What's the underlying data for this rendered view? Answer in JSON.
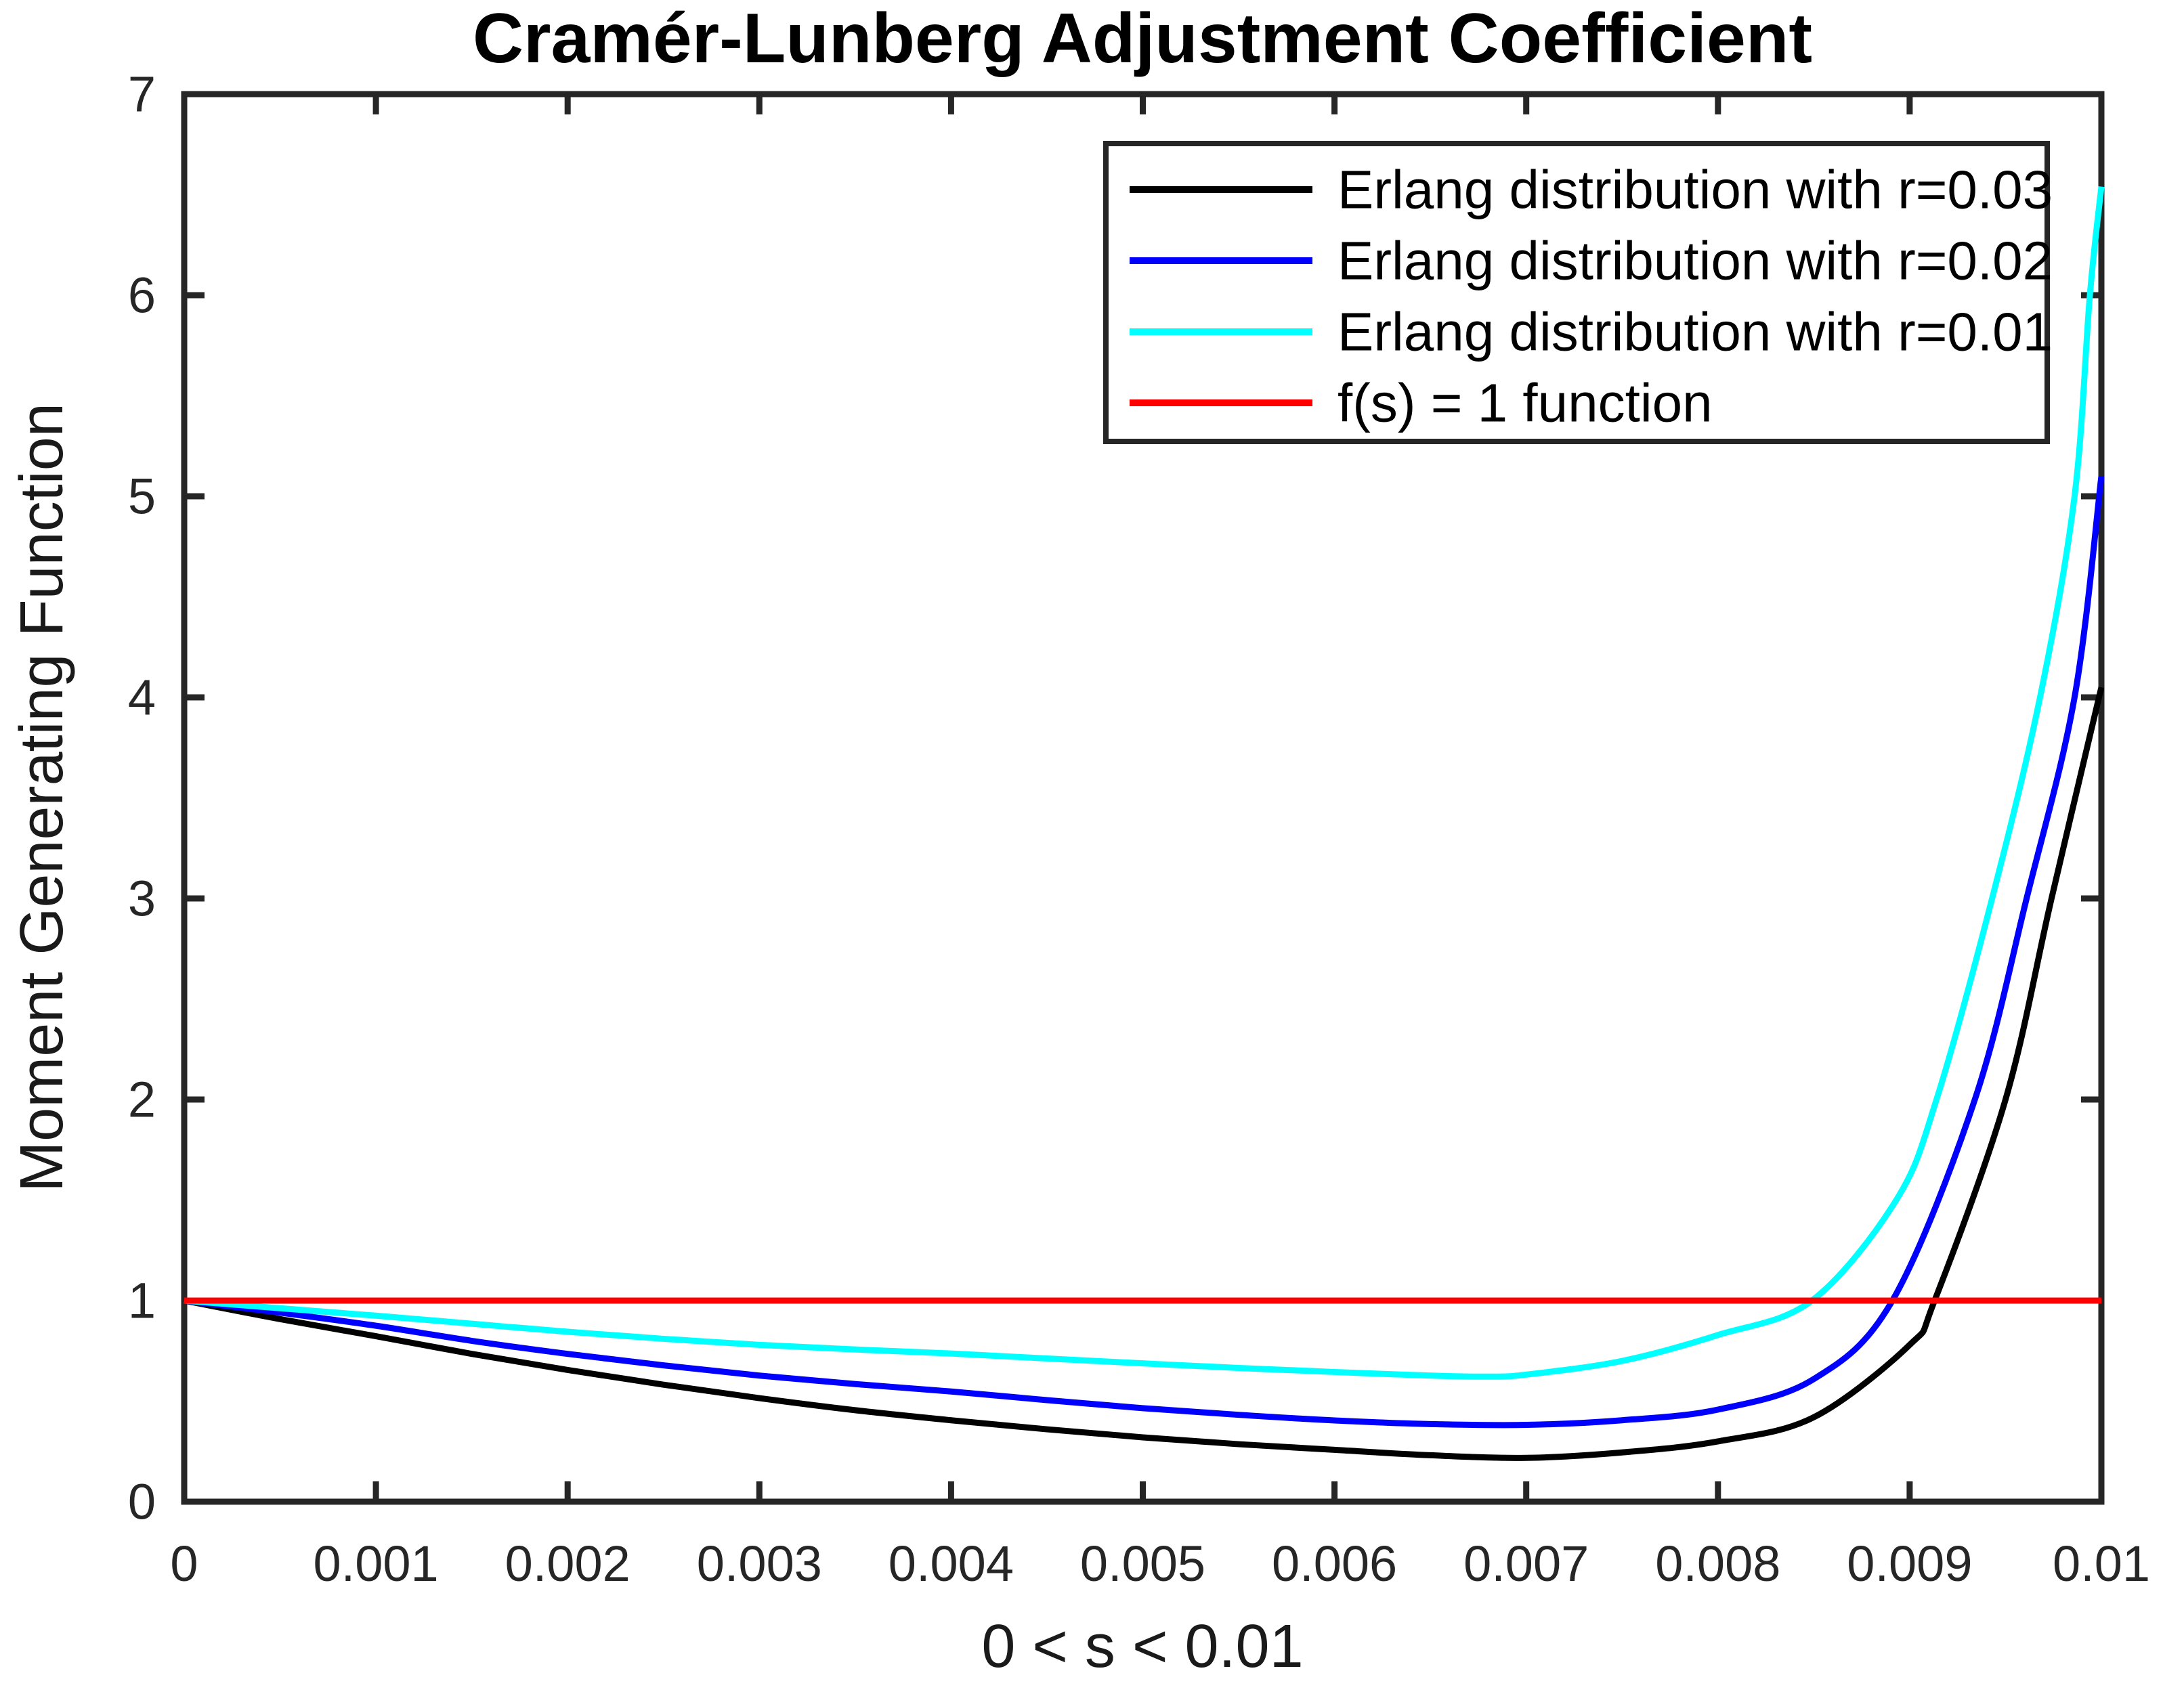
{
  "chart_data": {
    "type": "line",
    "title": "Cramér-Lunberg Adjustment Coefficient",
    "xlabel": "0 < s < 0.01",
    "ylabel": "Moment Generating Function",
    "xlim": [
      0,
      0.01
    ],
    "ylim": [
      0,
      7
    ],
    "x_ticks": [
      0,
      0.001,
      0.002,
      0.003,
      0.004,
      0.005,
      0.006,
      0.007,
      0.008,
      0.009,
      0.01
    ],
    "x_tick_labels": [
      "0",
      "0.001",
      "0.002",
      "0.003",
      "0.004",
      "0.005",
      "0.006",
      "0.007",
      "0.008",
      "0.009",
      "0.01"
    ],
    "y_ticks": [
      0,
      1,
      2,
      3,
      4,
      5,
      6,
      7
    ],
    "y_tick_labels": [
      "0",
      "1",
      "2",
      "3",
      "4",
      "5",
      "6",
      "7"
    ],
    "grid": false,
    "background_color": "#FFFFFF",
    "axis_color": "#262626",
    "legend": {
      "position": "top-right",
      "border_color": "#262626",
      "background_color": "#FFFFFF"
    },
    "series": [
      {
        "name": "Erlang distribution with r=0.03",
        "color": "#000000",
        "points": [
          [
            0,
            1.0
          ],
          [
            0.0005,
            0.908
          ],
          [
            0.001,
            0.823
          ],
          [
            0.0015,
            0.735
          ],
          [
            0.002,
            0.655
          ],
          [
            0.0025,
            0.582
          ],
          [
            0.003,
            0.515
          ],
          [
            0.0035,
            0.455
          ],
          [
            0.004,
            0.405
          ],
          [
            0.0045,
            0.36
          ],
          [
            0.005,
            0.32
          ],
          [
            0.0055,
            0.286
          ],
          [
            0.006,
            0.258
          ],
          [
            0.0065,
            0.231
          ],
          [
            0.007,
            0.218
          ],
          [
            0.0075,
            0.245
          ],
          [
            0.008,
            0.3
          ],
          [
            0.0085,
            0.42
          ],
          [
            0.009,
            0.78
          ],
          [
            0.00913,
            1.0
          ],
          [
            0.0095,
            2.0
          ],
          [
            0.00974,
            3.0
          ],
          [
            0.01,
            4.05
          ]
        ]
      },
      {
        "name": "Erlang distribution with r=0.02",
        "color": "#0000FF",
        "points": [
          [
            0,
            1.0
          ],
          [
            0.0005,
            0.94
          ],
          [
            0.001,
            0.875
          ],
          [
            0.0015,
            0.8
          ],
          [
            0.002,
            0.735
          ],
          [
            0.0025,
            0.678
          ],
          [
            0.003,
            0.627
          ],
          [
            0.0035,
            0.585
          ],
          [
            0.004,
            0.548
          ],
          [
            0.0045,
            0.505
          ],
          [
            0.005,
            0.465
          ],
          [
            0.0055,
            0.432
          ],
          [
            0.006,
            0.404
          ],
          [
            0.0065,
            0.386
          ],
          [
            0.007,
            0.382
          ],
          [
            0.0075,
            0.405
          ],
          [
            0.008,
            0.458
          ],
          [
            0.0085,
            0.61
          ],
          [
            0.00891,
            1.0
          ],
          [
            0.00934,
            2.0
          ],
          [
            0.00961,
            3.0
          ],
          [
            0.00986,
            4.0
          ],
          [
            0.01,
            5.1
          ]
        ]
      },
      {
        "name": "Erlang distribution with r=0.01",
        "color": "#00FFFF",
        "points": [
          [
            0,
            1.0
          ],
          [
            0.0005,
            0.962
          ],
          [
            0.001,
            0.925
          ],
          [
            0.0015,
            0.885
          ],
          [
            0.002,
            0.845
          ],
          [
            0.0025,
            0.81
          ],
          [
            0.003,
            0.78
          ],
          [
            0.0035,
            0.757
          ],
          [
            0.004,
            0.737
          ],
          [
            0.0045,
            0.712
          ],
          [
            0.005,
            0.688
          ],
          [
            0.0055,
            0.665
          ],
          [
            0.006,
            0.645
          ],
          [
            0.0065,
            0.627
          ],
          [
            0.0068,
            0.622
          ],
          [
            0.007,
            0.632
          ],
          [
            0.0075,
            0.7
          ],
          [
            0.008,
            0.829
          ],
          [
            0.00849,
            1.0
          ],
          [
            0.00893,
            1.5
          ],
          [
            0.00914,
            2.0
          ],
          [
            0.00943,
            3.0
          ],
          [
            0.00968,
            4.0
          ],
          [
            0.00986,
            5.0
          ],
          [
            0.00994,
            6.0
          ],
          [
            0.01,
            6.54
          ]
        ]
      },
      {
        "name": "f(s) = 1 function",
        "color": "#FF0000",
        "points": [
          [
            0,
            1.0
          ],
          [
            0.01,
            1.0
          ]
        ]
      }
    ]
  }
}
